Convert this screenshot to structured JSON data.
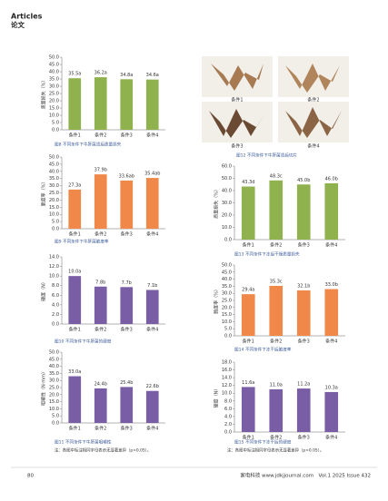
{
  "header": {
    "section_en": "Articles",
    "section_zh": "论文"
  },
  "figure_12": {
    "caption": "图12 不同条件下牛肝菌烫后切片",
    "labels": [
      "条件1",
      "条件2",
      "条件3",
      "条件4"
    ]
  },
  "notes": [
    "注：各图中标注相同字母表示无显著差异（p>0.05）。",
    "注：各图中标注相同字母表示无显著差异（p>0.05）。"
  ],
  "footer": {
    "page": "80",
    "journal": "家电科技 www.jdkjjournal.com　Vol.1 2025 Issue 432"
  },
  "chart_data": [
    {
      "type": "bar",
      "title": "图8 不同条件下牛肝菌烫后质量损失",
      "y_label": "质量损失（%）",
      "color": "#8fb24f",
      "categories": [
        "条件1",
        "条件2",
        "条件3",
        "条件4"
      ],
      "values": [
        35.5,
        36.2,
        34.8,
        34.6
      ],
      "value_labels": [
        "35.5a",
        "36.2a",
        "34.8a",
        "34.6a"
      ],
      "ylim": [
        0,
        50
      ],
      "yticks": [
        {
          "value": 0,
          "label": "0.0"
        },
        {
          "value": 5,
          "label": "5.0"
        },
        {
          "value": 10,
          "label": "10.0"
        },
        {
          "value": 15,
          "label": "15.0"
        },
        {
          "value": 20,
          "label": "20.0"
        },
        {
          "value": 25,
          "label": "25.0"
        },
        {
          "value": 30,
          "label": "30.0"
        },
        {
          "value": 35,
          "label": "35.0"
        },
        {
          "value": 40,
          "label": "40.0"
        },
        {
          "value": 45,
          "label": "45.0"
        },
        {
          "value": 50,
          "label": "50.0"
        }
      ]
    },
    {
      "type": "bar",
      "title": "图9 不同条件下牛肝菌脆度率",
      "y_label": "脆度率（%）",
      "color": "#f0884a",
      "categories": [
        "条件1",
        "条件2",
        "条件3",
        "条件4"
      ],
      "values": [
        27.3,
        37.9,
        33.6,
        35.4
      ],
      "value_labels": [
        "27.3a",
        "37.9b",
        "33.6ab",
        "35.4ab"
      ],
      "ylim": [
        0,
        50
      ],
      "yticks": [
        {
          "value": 0,
          "label": "0.0"
        },
        {
          "value": 5,
          "label": "5.0"
        },
        {
          "value": 10,
          "label": "10.0"
        },
        {
          "value": 15,
          "label": "15.0"
        },
        {
          "value": 20,
          "label": "20.0"
        },
        {
          "value": 25,
          "label": "25.0"
        },
        {
          "value": 30,
          "label": "30.0"
        },
        {
          "value": 35,
          "label": "35.0"
        },
        {
          "value": 40,
          "label": "40.0"
        },
        {
          "value": 45,
          "label": "45.0"
        },
        {
          "value": 50,
          "label": "50.0"
        }
      ]
    },
    {
      "type": "bar",
      "title": "图10 不同条件下牛肝菌的硬度",
      "y_label": "硬度（N）",
      "color": "#7a5ea5",
      "categories": [
        "条件1",
        "条件2",
        "条件3",
        "条件4"
      ],
      "values": [
        10.0,
        7.8,
        7.7,
        7.1
      ],
      "value_labels": [
        "10.0a",
        "7.8b",
        "7.7b",
        "7.1b"
      ],
      "ylim": [
        0,
        14
      ],
      "yticks": [
        {
          "value": 0,
          "label": "0.0"
        },
        {
          "value": 2,
          "label": "2.0"
        },
        {
          "value": 4,
          "label": "4.0"
        },
        {
          "value": 6,
          "label": "6.0"
        },
        {
          "value": 8,
          "label": "8.0"
        },
        {
          "value": 10,
          "label": "10.0"
        },
        {
          "value": 12,
          "label": "12.0"
        },
        {
          "value": 14,
          "label": "14.0"
        }
      ]
    },
    {
      "type": "bar",
      "title": "图11 不同条件下牛肝菌咀嚼性",
      "y_label": "咀嚼性（N·mm）",
      "color": "#7a5ea5",
      "categories": [
        "条件1",
        "条件2",
        "条件3",
        "条件4"
      ],
      "values": [
        33.0,
        24.4,
        25.4,
        22.6
      ],
      "value_labels": [
        "33.0a",
        "24.4b",
        "25.4b",
        "22.6b"
      ],
      "ylim": [
        0,
        50
      ],
      "yticks": [
        {
          "value": 0,
          "label": "0.0"
        },
        {
          "value": 5,
          "label": "5.0"
        },
        {
          "value": 10,
          "label": "10.0"
        },
        {
          "value": 15,
          "label": "15.0"
        },
        {
          "value": 20,
          "label": "20.0"
        },
        {
          "value": 25,
          "label": "25.0"
        },
        {
          "value": 30,
          "label": "30.0"
        },
        {
          "value": 35,
          "label": "35.0"
        },
        {
          "value": 40,
          "label": "40.0"
        },
        {
          "value": 45,
          "label": "45.0"
        },
        {
          "value": 50,
          "label": "50.0"
        }
      ]
    },
    {
      "type": "bar",
      "title": "图13 不同条件下冻后干燥质量损失",
      "y_label": "质量损失（%）",
      "color": "#8fb24f",
      "categories": [
        "条件1",
        "条件2",
        "条件3",
        "条件4"
      ],
      "values": [
        43.3,
        48.3,
        45.0,
        46.0
      ],
      "value_labels": [
        "43.3d",
        "48.3c",
        "45.0b",
        "46.0b"
      ],
      "ylim": [
        0,
        60
      ],
      "yticks": [
        {
          "value": 0,
          "label": "0.0"
        },
        {
          "value": 10,
          "label": "10.0"
        },
        {
          "value": 20,
          "label": "20.0"
        },
        {
          "value": 30,
          "label": "30.0"
        },
        {
          "value": 40,
          "label": "40.0"
        },
        {
          "value": 50,
          "label": "50.0"
        },
        {
          "value": 60,
          "label": "60.0"
        }
      ]
    },
    {
      "type": "bar",
      "title": "图14 不同条件下冻干后脆度率",
      "y_label": "脆度率（%）",
      "color": "#f0884a",
      "categories": [
        "条件1",
        "条件2",
        "条件3",
        "条件4"
      ],
      "values": [
        29.4,
        35.3,
        32.1,
        33.0
      ],
      "value_labels": [
        "29.4a",
        "35.3c",
        "32.1b",
        "33.0b"
      ],
      "ylim": [
        0,
        50
      ],
      "yticks": [
        {
          "value": 0,
          "label": "0.0"
        },
        {
          "value": 5,
          "label": "5.0"
        },
        {
          "value": 10,
          "label": "10.0"
        },
        {
          "value": 15,
          "label": "15.0"
        },
        {
          "value": 20,
          "label": "20.0"
        },
        {
          "value": 25,
          "label": "25.0"
        },
        {
          "value": 30,
          "label": "30.0"
        },
        {
          "value": 35,
          "label": "35.0"
        },
        {
          "value": 40,
          "label": "40.0"
        },
        {
          "value": 45,
          "label": "45.0"
        },
        {
          "value": 50,
          "label": "50.0"
        }
      ]
    },
    {
      "type": "bar",
      "title": "图15 不同条件下冻干后的硬度",
      "y_label": "硬度（N）",
      "color": "#7a5ea5",
      "categories": [
        "条件1",
        "条件2",
        "条件3",
        "条件4"
      ],
      "values": [
        11.6,
        11.0,
        11.2,
        10.3
      ],
      "value_labels": [
        "11.6a",
        "11.0a",
        "11.2a",
        "10.3a"
      ],
      "ylim": [
        0,
        18
      ],
      "yticks": [
        {
          "value": 0,
          "label": "0.0"
        },
        {
          "value": 2,
          "label": "2.0"
        },
        {
          "value": 4,
          "label": "4.0"
        },
        {
          "value": 6,
          "label": "6.0"
        },
        {
          "value": 8,
          "label": "8.0"
        },
        {
          "value": 10,
          "label": "10.0"
        },
        {
          "value": 12,
          "label": "12.0"
        },
        {
          "value": 14,
          "label": "14.0"
        },
        {
          "value": 16,
          "label": "16.0"
        },
        {
          "value": 18,
          "label": "18.0"
        }
      ]
    }
  ]
}
